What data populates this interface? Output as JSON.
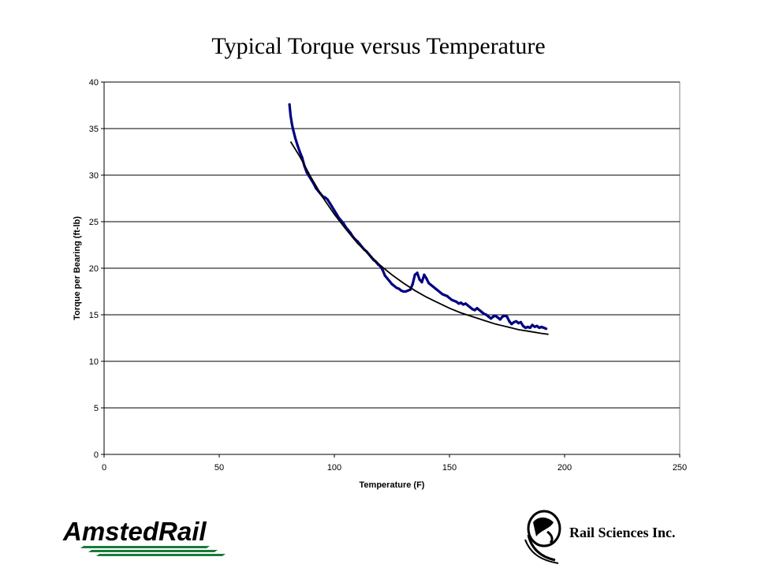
{
  "slide": {
    "title": "Typical Torque versus Temperature"
  },
  "chart_data": {
    "type": "scatter",
    "title": "Typical Torque versus Temperature",
    "xlabel": "Temperature (F)",
    "ylabel": "Torque per Bearing (ft-lb)",
    "xlim": [
      0,
      250
    ],
    "ylim": [
      0,
      40
    ],
    "x_ticks": [
      0,
      50,
      100,
      150,
      200,
      250
    ],
    "y_ticks": [
      0,
      5,
      10,
      15,
      20,
      25,
      30,
      35,
      40
    ],
    "grid": "horizontal",
    "legend": "none",
    "series": [
      {
        "kind": "measured",
        "color": "#000080",
        "points": [
          [
            80.5,
            37.6
          ],
          [
            81.0,
            36.4
          ],
          [
            81.5,
            35.6
          ],
          [
            82.0,
            35.0
          ],
          [
            83.0,
            34.0
          ],
          [
            84.0,
            33.2
          ],
          [
            85.0,
            32.5
          ],
          [
            86.0,
            31.9
          ],
          [
            87.0,
            31.0
          ],
          [
            88.0,
            30.3
          ],
          [
            89.0,
            29.9
          ],
          [
            90.0,
            29.5
          ],
          [
            91.0,
            29.1
          ],
          [
            92.0,
            28.6
          ],
          [
            93.0,
            28.3
          ],
          [
            94.0,
            28.0
          ],
          [
            95.0,
            27.7
          ],
          [
            96.0,
            27.6
          ],
          [
            97.0,
            27.4
          ],
          [
            98.0,
            27.0
          ],
          [
            99.0,
            26.6
          ],
          [
            100.0,
            26.2
          ],
          [
            101.0,
            25.8
          ],
          [
            102.0,
            25.4
          ],
          [
            103.0,
            25.1
          ],
          [
            104.0,
            24.8
          ],
          [
            105.0,
            24.4
          ],
          [
            106.0,
            24.1
          ],
          [
            107.0,
            23.8
          ],
          [
            108.0,
            23.4
          ],
          [
            109.0,
            23.1
          ],
          [
            110.0,
            22.9
          ],
          [
            111.0,
            22.6
          ],
          [
            112.0,
            22.3
          ],
          [
            113.0,
            22.0
          ],
          [
            114.0,
            21.8
          ],
          [
            115.0,
            21.5
          ],
          [
            116.0,
            21.2
          ],
          [
            117.0,
            20.9
          ],
          [
            118.0,
            20.7
          ],
          [
            119.0,
            20.4
          ],
          [
            120.0,
            20.2
          ],
          [
            121.0,
            19.8
          ],
          [
            122.0,
            19.2
          ],
          [
            123.0,
            18.9
          ],
          [
            124.0,
            18.6
          ],
          [
            125.0,
            18.3
          ],
          [
            126.0,
            18.1
          ],
          [
            127.0,
            17.9
          ],
          [
            128.0,
            17.8
          ],
          [
            129.0,
            17.6
          ],
          [
            130.0,
            17.5
          ],
          [
            131.0,
            17.5
          ],
          [
            132.0,
            17.6
          ],
          [
            133.0,
            17.7
          ],
          [
            134.0,
            18.3
          ],
          [
            135.0,
            19.3
          ],
          [
            136.0,
            19.5
          ],
          [
            137.0,
            18.8
          ],
          [
            138.0,
            18.5
          ],
          [
            139.0,
            19.3
          ],
          [
            140.0,
            18.9
          ],
          [
            141.0,
            18.4
          ],
          [
            142.0,
            18.2
          ],
          [
            143.0,
            18.0
          ],
          [
            144.0,
            17.8
          ],
          [
            145.0,
            17.6
          ],
          [
            146.0,
            17.4
          ],
          [
            147.0,
            17.2
          ],
          [
            148.0,
            17.1
          ],
          [
            149.0,
            17.0
          ],
          [
            150.0,
            16.8
          ],
          [
            151.0,
            16.6
          ],
          [
            152.0,
            16.5
          ],
          [
            153.0,
            16.4
          ],
          [
            154.0,
            16.2
          ],
          [
            155.0,
            16.3
          ],
          [
            156.0,
            16.1
          ],
          [
            157.0,
            16.2
          ],
          [
            158.0,
            16.0
          ],
          [
            159.0,
            15.8
          ],
          [
            160.0,
            15.6
          ],
          [
            161.0,
            15.5
          ],
          [
            162.0,
            15.7
          ],
          [
            163.0,
            15.5
          ],
          [
            164.0,
            15.3
          ],
          [
            165.0,
            15.1
          ],
          [
            166.0,
            15.0
          ],
          [
            167.0,
            14.8
          ],
          [
            168.0,
            14.6
          ],
          [
            169.0,
            14.8
          ],
          [
            170.0,
            14.9
          ],
          [
            171.0,
            14.7
          ],
          [
            172.0,
            14.5
          ],
          [
            173.0,
            14.8
          ],
          [
            174.0,
            14.9
          ],
          [
            175.0,
            14.8
          ],
          [
            176.0,
            14.3
          ],
          [
            177.0,
            14.0
          ],
          [
            178.0,
            14.2
          ],
          [
            179.0,
            14.3
          ],
          [
            180.0,
            14.1
          ],
          [
            181.0,
            14.2
          ],
          [
            182.0,
            13.8
          ],
          [
            183.0,
            13.6
          ],
          [
            184.0,
            13.7
          ],
          [
            185.0,
            13.6
          ],
          [
            186.0,
            13.9
          ],
          [
            187.0,
            13.7
          ],
          [
            188.0,
            13.8
          ],
          [
            189.0,
            13.6
          ],
          [
            190.0,
            13.7
          ],
          [
            191.0,
            13.6
          ],
          [
            192.0,
            13.5
          ]
        ]
      },
      {
        "kind": "trendline",
        "color": "#000000",
        "points": [
          [
            81,
            33.6
          ],
          [
            85,
            32.0
          ],
          [
            90,
            29.7
          ],
          [
            95,
            27.6
          ],
          [
            100,
            25.8
          ],
          [
            105,
            24.2
          ],
          [
            110,
            22.7
          ],
          [
            115,
            21.5
          ],
          [
            120,
            20.3
          ],
          [
            125,
            19.3
          ],
          [
            130,
            18.4
          ],
          [
            135,
            17.6
          ],
          [
            140,
            16.9
          ],
          [
            145,
            16.3
          ],
          [
            150,
            15.7
          ],
          [
            155,
            15.2
          ],
          [
            160,
            14.8
          ],
          [
            165,
            14.4
          ],
          [
            170,
            14.0
          ],
          [
            175,
            13.7
          ],
          [
            180,
            13.4
          ],
          [
            185,
            13.2
          ],
          [
            190,
            13.0
          ],
          [
            193,
            12.9
          ]
        ]
      }
    ]
  },
  "logos": {
    "left_brand": "AmstedRail",
    "right_brand": "Rail Sciences Inc.",
    "right_icon": "globe-rail-icon"
  }
}
